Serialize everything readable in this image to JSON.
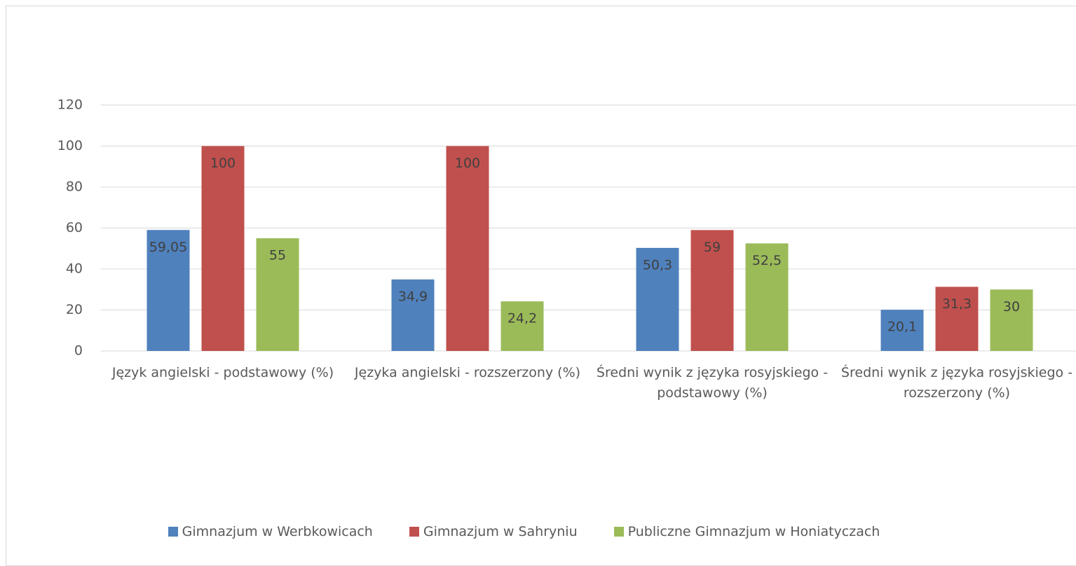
{
  "chart_data": {
    "type": "bar",
    "categories": [
      "Język angielski - podstawowy (%)",
      "Języka angielski - rozszerzony (%)",
      "Średni wynik z języka rosyjskiego - podstawowy (%)",
      "Średni wynik z języka rosyjskiego - rozszerzony (%)"
    ],
    "series": [
      {
        "name": "Gimnazjum w Werbkowicach",
        "color": "#4f81bd",
        "values": [
          59.05,
          34.9,
          50.3,
          20.1
        ],
        "value_labels": [
          "59,05",
          "34,9",
          "50,3",
          "20,1"
        ]
      },
      {
        "name": "Gimnazjum w Sahryniu",
        "color": "#c0504d",
        "values": [
          100,
          100,
          59,
          31.3
        ],
        "value_labels": [
          "100",
          "100",
          "59",
          "31,3"
        ]
      },
      {
        "name": "Publiczne Gimnazjum w Honiatyczach",
        "color": "#9bbb59",
        "values": [
          55,
          24.2,
          52.5,
          30
        ],
        "value_labels": [
          "55",
          "24,2",
          "52,5",
          "30"
        ]
      }
    ],
    "ylim": [
      0,
      120
    ],
    "yticks": [
      0,
      20,
      40,
      60,
      80,
      100,
      120
    ],
    "grid": true,
    "legend": "bottom"
  }
}
